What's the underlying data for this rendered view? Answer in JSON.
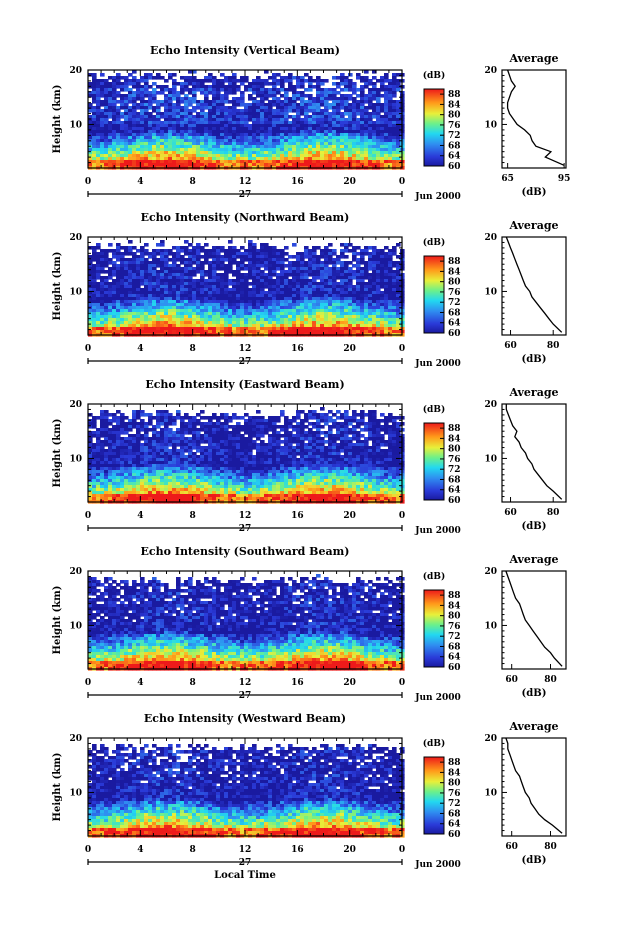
{
  "figure": {
    "xlabel": "Local Time",
    "date_label": "Jun 2000",
    "day_label": "27",
    "height_label": "Height (km)",
    "colorbar_unit": "(dB)",
    "average_title": "Average",
    "average_xlabel": "(dB)"
  },
  "chart_data": [
    {
      "type": "heatmap",
      "title": "Echo Intensity (Vertical Beam)",
      "xlabel": "Local Time",
      "ylabel": "Height (km)",
      "x_ticks": [
        "0",
        "4",
        "8",
        "12",
        "16",
        "20",
        "0"
      ],
      "y_ticks": [
        "10",
        "20"
      ],
      "xlim": [
        0,
        24
      ],
      "ylim": [
        2,
        20
      ],
      "colorbar": {
        "label": "(dB)",
        "ticks": [
          "60",
          "64",
          "68",
          "72",
          "76",
          "80",
          "84",
          "88"
        ],
        "range": [
          60,
          90
        ]
      },
      "average_profile": {
        "title": "Average",
        "xlabel": "(dB)",
        "x_ticks": [
          "65",
          "95"
        ],
        "xlim": [
          62,
          96
        ],
        "height_km": [
          2.5,
          4,
          5,
          6,
          7,
          8,
          9,
          10,
          11,
          12,
          13,
          14,
          15,
          16,
          17,
          18,
          19,
          20
        ],
        "db": [
          95,
          85,
          88,
          80,
          78,
          77,
          74,
          70,
          68,
          66,
          65,
          65,
          66,
          67,
          69,
          67,
          66,
          65
        ]
      }
    },
    {
      "type": "heatmap",
      "title": "Echo Intensity (Northward Beam)",
      "xlabel": "Local Time",
      "ylabel": "Height (km)",
      "x_ticks": [
        "0",
        "4",
        "8",
        "12",
        "16",
        "20",
        "0"
      ],
      "y_ticks": [
        "10",
        "20"
      ],
      "xlim": [
        0,
        24
      ],
      "ylim": [
        2,
        20
      ],
      "colorbar": {
        "label": "(dB)",
        "ticks": [
          "60",
          "64",
          "68",
          "72",
          "76",
          "80",
          "84",
          "88"
        ],
        "range": [
          60,
          90
        ]
      },
      "average_profile": {
        "title": "Average",
        "xlabel": "(dB)",
        "x_ticks": [
          "60",
          "80"
        ],
        "xlim": [
          56,
          86
        ],
        "height_km": [
          2.5,
          4,
          5,
          6,
          7,
          8,
          9,
          10,
          11,
          12,
          13,
          14,
          15,
          16,
          17,
          18,
          19,
          20
        ],
        "db": [
          84,
          80,
          78,
          76,
          74,
          72,
          70,
          69,
          67,
          66,
          65,
          64,
          63,
          62,
          61,
          60,
          59,
          58
        ]
      }
    },
    {
      "type": "heatmap",
      "title": "Echo Intensity (Eastward Beam)",
      "xlabel": "Local Time",
      "ylabel": "Height (km)",
      "x_ticks": [
        "0",
        "4",
        "8",
        "12",
        "16",
        "20",
        "0"
      ],
      "y_ticks": [
        "10",
        "20"
      ],
      "xlim": [
        0,
        24
      ],
      "ylim": [
        2,
        20
      ],
      "colorbar": {
        "label": "(dB)",
        "ticks": [
          "60",
          "64",
          "68",
          "72",
          "76",
          "80",
          "84",
          "88"
        ],
        "range": [
          60,
          90
        ]
      },
      "average_profile": {
        "title": "Average",
        "xlabel": "(dB)",
        "x_ticks": [
          "60",
          "80"
        ],
        "xlim": [
          56,
          86
        ],
        "height_km": [
          2.5,
          4,
          5,
          6,
          7,
          8,
          9,
          10,
          11,
          12,
          13,
          14,
          15,
          16,
          17,
          18,
          19,
          20
        ],
        "db": [
          84,
          80,
          77,
          75,
          73,
          71,
          70,
          68,
          67,
          65,
          64,
          62,
          63,
          61,
          60,
          59,
          58,
          58
        ]
      }
    },
    {
      "type": "heatmap",
      "title": "Echo Intensity (Southward Beam)",
      "xlabel": "Local Time",
      "ylabel": "Height (km)",
      "x_ticks": [
        "0",
        "4",
        "8",
        "12",
        "16",
        "20",
        "0"
      ],
      "y_ticks": [
        "10",
        "20"
      ],
      "xlim": [
        0,
        24
      ],
      "ylim": [
        2,
        20
      ],
      "colorbar": {
        "label": "(dB)",
        "ticks": [
          "60",
          "64",
          "68",
          "72",
          "76",
          "80",
          "84",
          "88"
        ],
        "range": [
          60,
          90
        ]
      },
      "average_profile": {
        "title": "Average",
        "xlabel": "(dB)",
        "x_ticks": [
          "60",
          "80"
        ],
        "xlim": [
          55,
          88
        ],
        "height_km": [
          2.5,
          4,
          5,
          6,
          7,
          8,
          9,
          10,
          11,
          12,
          13,
          14,
          15,
          16,
          17,
          18,
          19,
          20
        ],
        "db": [
          86,
          82,
          80,
          77,
          75,
          73,
          71,
          69,
          67,
          66,
          65,
          64,
          62,
          61,
          60,
          59,
          58,
          57
        ]
      }
    },
    {
      "type": "heatmap",
      "title": "Echo Intensity (Westward Beam)",
      "xlabel": "Local Time",
      "ylabel": "Height (km)",
      "x_ticks": [
        "0",
        "4",
        "8",
        "12",
        "16",
        "20",
        "0"
      ],
      "y_ticks": [
        "10",
        "20"
      ],
      "xlim": [
        0,
        24
      ],
      "ylim": [
        2,
        20
      ],
      "colorbar": {
        "label": "(dB)",
        "ticks": [
          "60",
          "64",
          "68",
          "72",
          "76",
          "80",
          "84",
          "88"
        ],
        "range": [
          60,
          90
        ]
      },
      "average_profile": {
        "title": "Average",
        "xlabel": "(dB)",
        "x_ticks": [
          "60",
          "80"
        ],
        "xlim": [
          55,
          88
        ],
        "height_km": [
          2.5,
          4,
          5,
          6,
          7,
          8,
          9,
          10,
          11,
          12,
          13,
          14,
          15,
          16,
          17,
          18,
          19,
          20
        ],
        "db": [
          86,
          81,
          77,
          74,
          72,
          70,
          69,
          67,
          66,
          65,
          64,
          62,
          61,
          60,
          59,
          58,
          58,
          57
        ]
      }
    }
  ]
}
